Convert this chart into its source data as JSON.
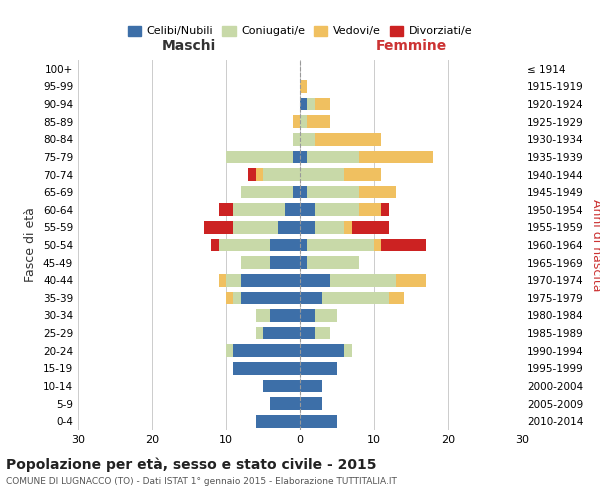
{
  "age_groups": [
    "100+",
    "95-99",
    "90-94",
    "85-89",
    "80-84",
    "75-79",
    "70-74",
    "65-69",
    "60-64",
    "55-59",
    "50-54",
    "45-49",
    "40-44",
    "35-39",
    "30-34",
    "25-29",
    "20-24",
    "15-19",
    "10-14",
    "5-9",
    "0-4"
  ],
  "birth_years": [
    "≤ 1914",
    "1915-1919",
    "1920-1924",
    "1925-1929",
    "1930-1934",
    "1935-1939",
    "1940-1944",
    "1945-1949",
    "1950-1954",
    "1955-1959",
    "1960-1964",
    "1965-1969",
    "1970-1974",
    "1975-1979",
    "1980-1984",
    "1985-1989",
    "1990-1994",
    "1995-1999",
    "2000-2004",
    "2005-2009",
    "2010-2014"
  ],
  "maschi": {
    "celibi": [
      0,
      0,
      0,
      0,
      0,
      1,
      0,
      1,
      2,
      3,
      4,
      4,
      8,
      8,
      4,
      5,
      9,
      9,
      5,
      4,
      6
    ],
    "coniugati": [
      0,
      0,
      0,
      0,
      1,
      9,
      5,
      7,
      7,
      6,
      7,
      4,
      2,
      1,
      2,
      1,
      1,
      0,
      0,
      0,
      0
    ],
    "vedovi": [
      0,
      0,
      0,
      1,
      0,
      0,
      1,
      0,
      0,
      0,
      0,
      0,
      1,
      1,
      0,
      0,
      0,
      0,
      0,
      0,
      0
    ],
    "divorziati": [
      0,
      0,
      0,
      0,
      0,
      0,
      1,
      0,
      2,
      4,
      1,
      0,
      0,
      0,
      0,
      0,
      0,
      0,
      0,
      0,
      0
    ]
  },
  "femmine": {
    "nubili": [
      0,
      0,
      1,
      0,
      0,
      1,
      0,
      1,
      2,
      2,
      1,
      1,
      4,
      3,
      2,
      2,
      6,
      5,
      3,
      3,
      5
    ],
    "coniugate": [
      0,
      0,
      1,
      1,
      2,
      7,
      6,
      7,
      6,
      4,
      9,
      7,
      9,
      9,
      3,
      2,
      1,
      0,
      0,
      0,
      0
    ],
    "vedove": [
      0,
      1,
      2,
      3,
      9,
      10,
      5,
      5,
      3,
      1,
      1,
      0,
      4,
      2,
      0,
      0,
      0,
      0,
      0,
      0,
      0
    ],
    "divorziate": [
      0,
      0,
      0,
      0,
      0,
      0,
      0,
      0,
      1,
      5,
      6,
      0,
      0,
      0,
      0,
      0,
      0,
      0,
      0,
      0,
      0
    ]
  },
  "colors": {
    "celibi": "#3d6fa8",
    "coniugati": "#c8d9a8",
    "vedovi": "#f0c060",
    "divorziati": "#cc2222"
  },
  "xlim": 30,
  "title": "Popolazione per età, sesso e stato civile - 2015",
  "subtitle": "COMUNE DI LUGNACCO (TO) - Dati ISTAT 1° gennaio 2015 - Elaborazione TUTTITALIA.IT",
  "ylabel_left": "Fasce di età",
  "ylabel_right": "Anni di nascita",
  "xlabel_left": "Maschi",
  "xlabel_right": "Femmine",
  "legend_labels": [
    "Celibi/Nubili",
    "Coniugati/e",
    "Vedovi/e",
    "Divorziati/e"
  ],
  "background_color": "#ffffff",
  "grid_color": "#cccccc"
}
